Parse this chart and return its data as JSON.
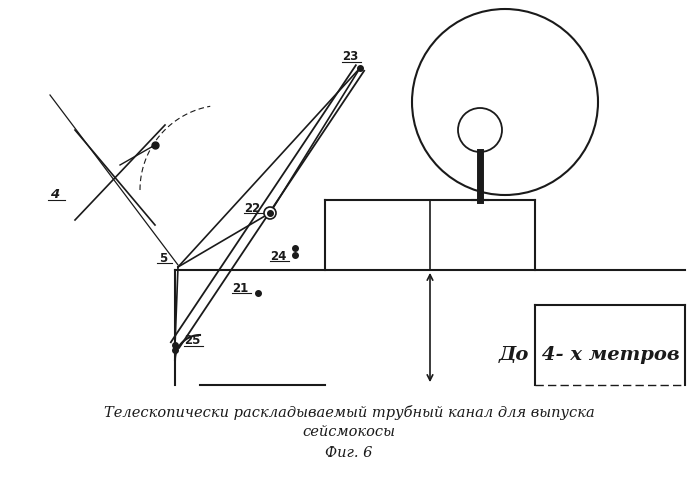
{
  "bg_color": "#ffffff",
  "line_color": "#1a1a1a",
  "caption_line1": "Телескопически раскладываемый трубный канал для выпуска",
  "caption_line2": "сейсмокосы",
  "caption_fig": "Фиг. 6",
  "label_4": "4",
  "label_5": "5",
  "label_21": "21",
  "label_22": "22",
  "label_23": "23",
  "label_24": "24",
  "label_25": "25",
  "label_dim": "До  4- х метров",
  "font_size_caption": 10.5,
  "font_size_fig": 10.5,
  "font_size_label": 8.5,
  "font_size_dim": 14
}
